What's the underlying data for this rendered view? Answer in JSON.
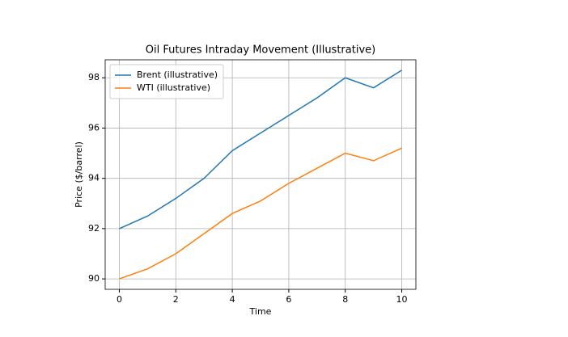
{
  "chart_data": {
    "type": "line",
    "title": "Oil Futures Intraday Movement (Illustrative)",
    "x_label": "Time",
    "y_label": "Price ($/barrel)",
    "x": [
      0,
      1,
      2,
      3,
      4,
      5,
      6,
      7,
      8,
      9,
      10
    ],
    "series": [
      {
        "name": "Brent (illustrative)",
        "color": "#1f77b4",
        "values": [
          92.0,
          92.5,
          93.2,
          94.0,
          95.1,
          95.8,
          96.5,
          97.2,
          98.0,
          97.6,
          98.3
        ]
      },
      {
        "name": "WTI (illustrative)",
        "color": "#ff7f0e",
        "values": [
          90.0,
          90.4,
          91.0,
          91.8,
          92.6,
          93.1,
          93.8,
          94.4,
          95.0,
          94.7,
          95.2
        ]
      }
    ],
    "xlim": [
      -0.5,
      10.5
    ],
    "xticks": [
      0,
      2,
      4,
      6,
      8,
      10
    ],
    "ylim": [
      89.585,
      98.715
    ],
    "yticks": [
      90,
      92,
      94,
      96,
      98
    ],
    "grid": true,
    "legend": "upper-left"
  }
}
